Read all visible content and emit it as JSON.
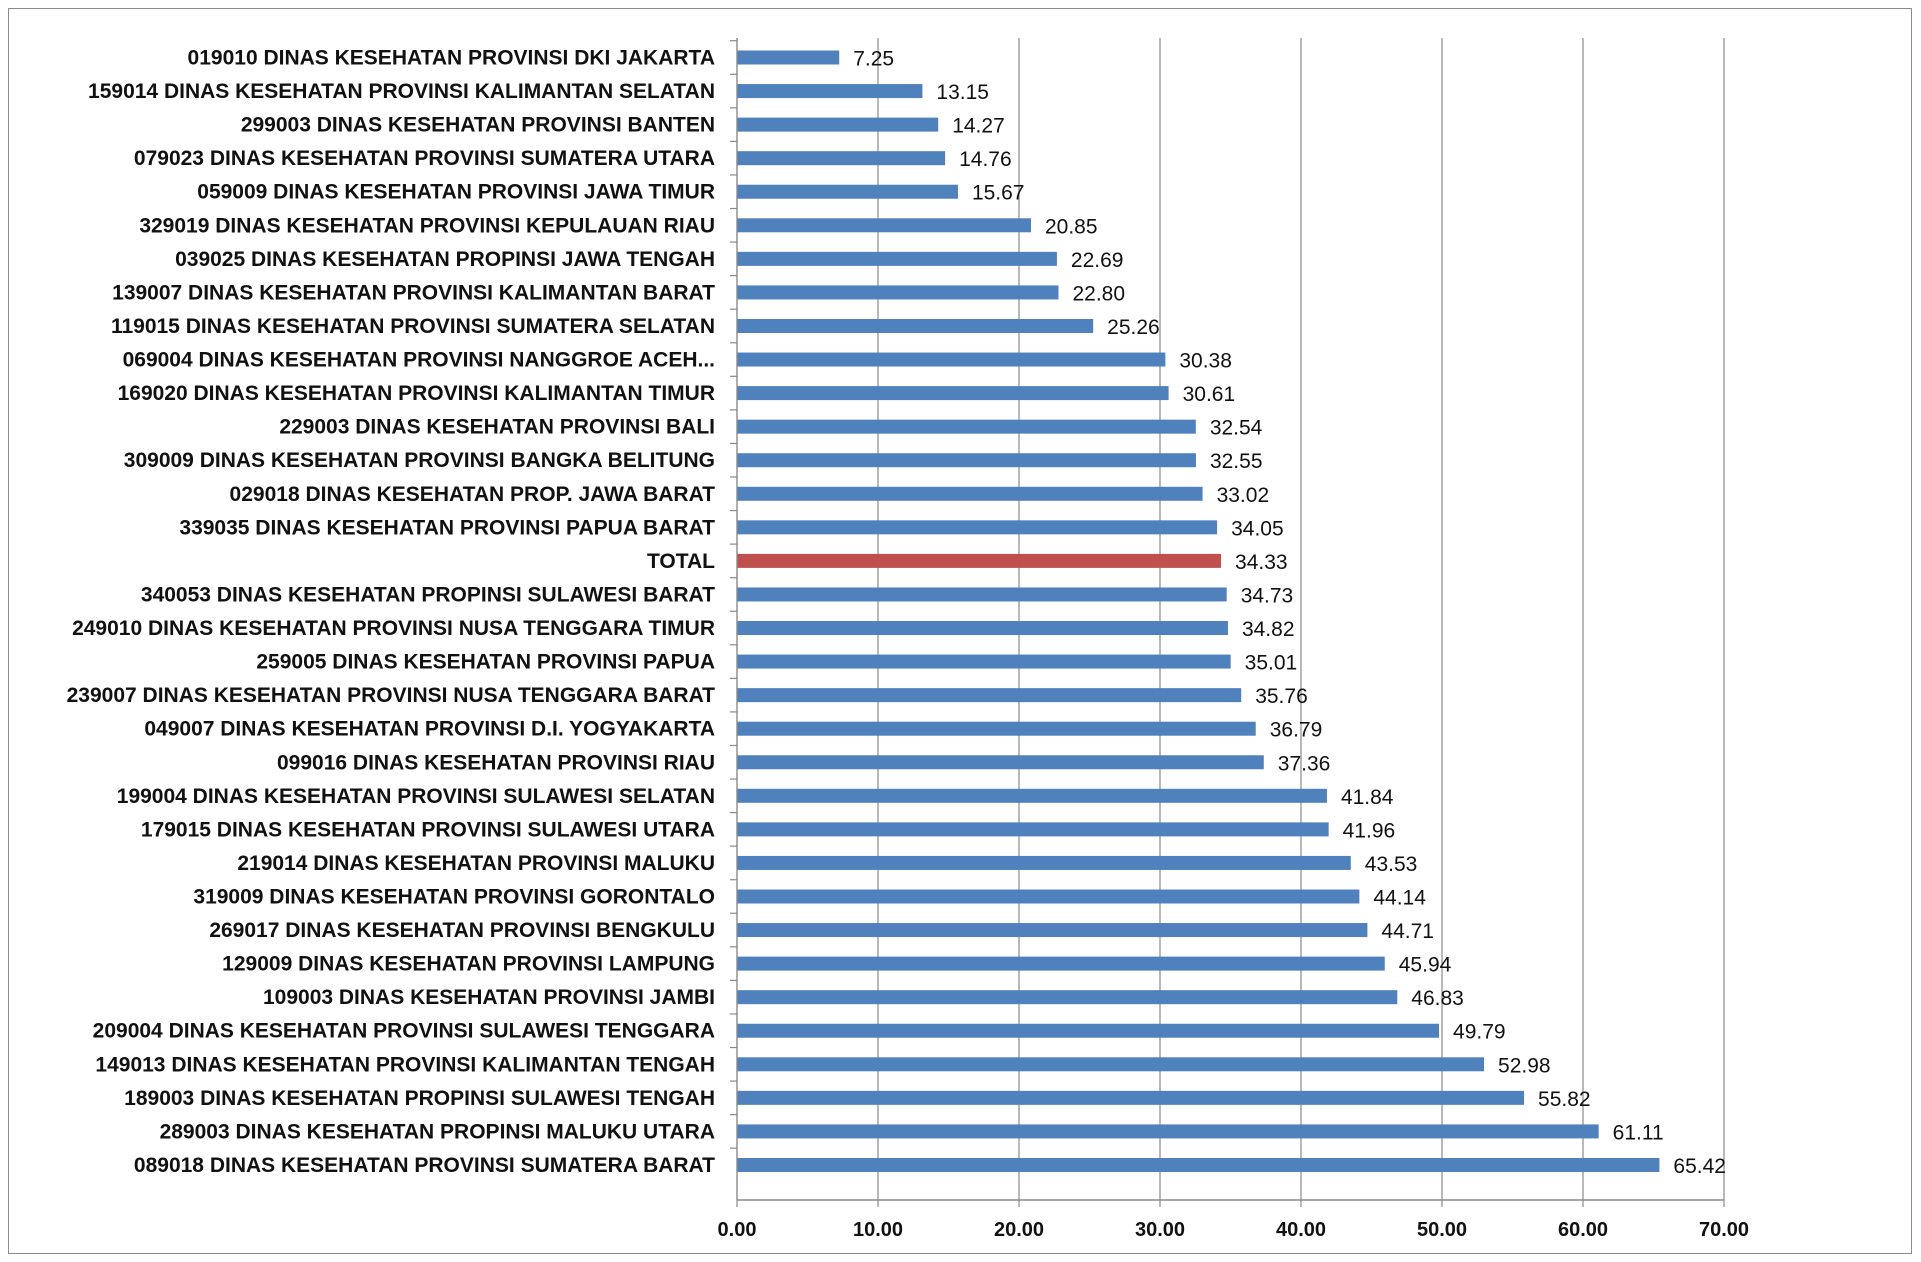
{
  "chart_data": {
    "type": "bar",
    "orientation": "horizontal",
    "title": "",
    "xlabel": "",
    "ylabel": "",
    "xlim": [
      0,
      70
    ],
    "x_ticks": [
      "0.00",
      "10.00",
      "20.00",
      "30.00",
      "40.00",
      "50.00",
      "60.00",
      "70.00"
    ],
    "grid": "vertical",
    "legend": "none",
    "colors": {
      "default": "#4f81bd",
      "highlight": "#c0504d"
    },
    "categories": [
      "019010 DINAS KESEHATAN PROVINSI DKI JAKARTA",
      "159014 DINAS KESEHATAN PROVINSI KALIMANTAN SELATAN",
      "299003 DINAS KESEHATAN PROVINSI BANTEN",
      "079023 DINAS KESEHATAN PROVINSI SUMATERA UTARA",
      "059009 DINAS KESEHATAN PROVINSI JAWA TIMUR",
      "329019 DINAS KESEHATAN PROVINSI KEPULAUAN RIAU",
      "039025 DINAS KESEHATAN PROPINSI JAWA TENGAH",
      "139007 DINAS KESEHATAN PROVINSI KALIMANTAN BARAT",
      "119015 DINAS KESEHATAN PROVINSI SUMATERA SELATAN",
      "069004 DINAS KESEHATAN PROVINSI NANGGROE ACEH...",
      "169020 DINAS KESEHATAN PROVINSI KALIMANTAN TIMUR",
      "229003 DINAS KESEHATAN PROVINSI BALI",
      "309009 DINAS KESEHATAN PROVINSI BANGKA BELITUNG",
      "029018 DINAS KESEHATAN PROP. JAWA BARAT",
      "339035 DINAS KESEHATAN PROVINSI PAPUA BARAT",
      "TOTAL",
      "340053 DINAS KESEHATAN PROPINSI SULAWESI BARAT",
      "249010 DINAS KESEHATAN PROVINSI NUSA TENGGARA TIMUR",
      "259005 DINAS KESEHATAN PROVINSI PAPUA",
      "239007 DINAS KESEHATAN PROVINSI NUSA TENGGARA BARAT",
      "049007 DINAS KESEHATAN PROVINSI D.I. YOGYAKARTA",
      "099016 DINAS KESEHATAN PROVINSI RIAU",
      "199004 DINAS KESEHATAN PROVINSI SULAWESI SELATAN",
      "179015 DINAS KESEHATAN PROVINSI SULAWESI UTARA",
      "219014 DINAS KESEHATAN PROVINSI MALUKU",
      "319009 DINAS KESEHATAN PROVINSI GORONTALO",
      "269017 DINAS KESEHATAN PROVINSI BENGKULU",
      "129009 DINAS KESEHATAN PROVINSI LAMPUNG",
      "109003 DINAS KESEHATAN PROVINSI JAMBI",
      "209004 DINAS KESEHATAN PROVINSI SULAWESI TENGGARA",
      "149013 DINAS KESEHATAN PROVINSI KALIMANTAN TENGAH",
      "189003 DINAS KESEHATAN PROPINSI SULAWESI TENGAH",
      "289003 DINAS KESEHATAN PROPINSI MALUKU UTARA",
      "089018 DINAS KESEHATAN PROVINSI SUMATERA BARAT"
    ],
    "values": [
      7.25,
      13.15,
      14.27,
      14.76,
      15.67,
      20.85,
      22.69,
      22.8,
      25.26,
      30.38,
      30.61,
      32.54,
      32.55,
      33.02,
      34.05,
      34.33,
      34.73,
      34.82,
      35.01,
      35.76,
      36.79,
      37.36,
      41.84,
      41.96,
      43.53,
      44.14,
      44.71,
      45.94,
      46.83,
      49.79,
      52.98,
      55.82,
      61.11,
      65.42
    ],
    "value_labels": [
      "7.25",
      "13.15",
      "14.27",
      "14.76",
      "15.67",
      "20.85",
      "22.69",
      "22.80",
      "25.26",
      "30.38",
      "30.61",
      "32.54",
      "32.55",
      "33.02",
      "34.05",
      "34.33",
      "34.73",
      "34.82",
      "35.01",
      "35.76",
      "36.79",
      "37.36",
      "41.84",
      "41.96",
      "43.53",
      "44.14",
      "44.71",
      "45.94",
      "46.83",
      "49.79",
      "52.98",
      "55.82",
      "61.11",
      "65.42"
    ],
    "highlight_category": "TOTAL"
  }
}
